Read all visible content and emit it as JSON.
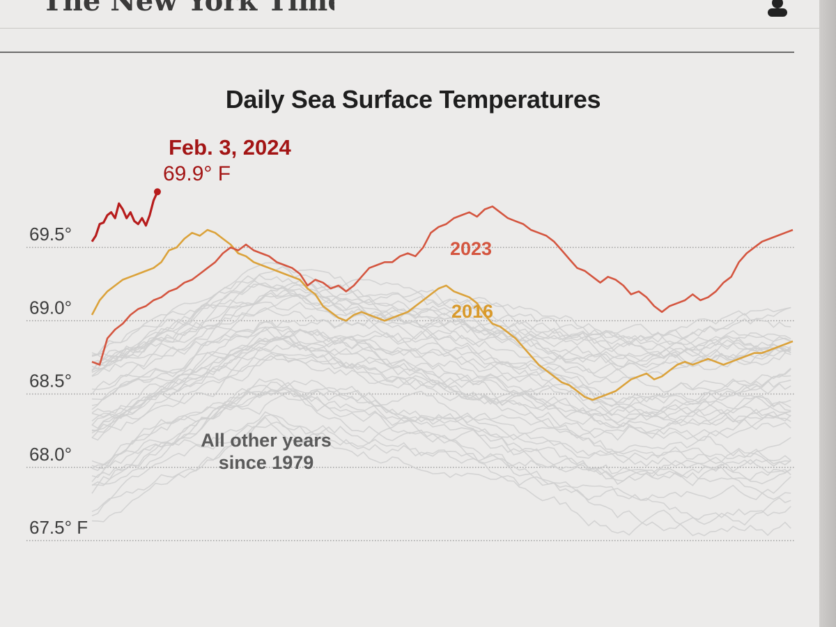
{
  "header": {
    "masthead": "The New York Times",
    "account_icon": "account-icon"
  },
  "chart_data": {
    "type": "line",
    "title": "Daily Sea Surface Temperatures",
    "unit": "° F",
    "ylim": [
      67.4,
      70.1
    ],
    "y_ticks": [
      {
        "value": 69.5,
        "label": "69.5°"
      },
      {
        "value": 69.0,
        "label": "69.0°"
      },
      {
        "value": 68.5,
        "label": "68.5°"
      },
      {
        "value": 68.0,
        "label": "68.0°"
      },
      {
        "value": 67.5,
        "label": "67.5° F"
      }
    ],
    "x_label": "",
    "grid": "horizontal dotted",
    "colors": {
      "current": "#b71c1c",
      "y2023": "#d4553f",
      "y2016": "#dba23a",
      "other": "#cfcfcf"
    },
    "series": [
      {
        "name": "2024",
        "color": "#b71c1c",
        "annotation_date": "Feb. 3, 2024",
        "annotation_value": "69.9° F",
        "x": [
          0,
          2,
          4,
          6,
          8,
          10,
          12,
          14,
          16,
          18,
          20,
          22,
          24,
          26,
          28,
          30,
          32,
          34
        ],
        "values": [
          69.54,
          69.58,
          69.66,
          69.67,
          69.72,
          69.74,
          69.7,
          69.8,
          69.76,
          69.7,
          69.74,
          69.68,
          69.66,
          69.7,
          69.65,
          69.72,
          69.82,
          69.88
        ]
      },
      {
        "name": "2023",
        "color": "#d4553f",
        "x": [
          0,
          4,
          8,
          12,
          16,
          20,
          24,
          28,
          32,
          36,
          40,
          44,
          48,
          52,
          56,
          60,
          64,
          68,
          72,
          76,
          80,
          84,
          88,
          92,
          96,
          100,
          104,
          108,
          112,
          116,
          120,
          124,
          128,
          132,
          136,
          140,
          144,
          148,
          152,
          156,
          160,
          164,
          168,
          172,
          176,
          180,
          184,
          188,
          192,
          196,
          200,
          204,
          208,
          212,
          216,
          220,
          224,
          228,
          232,
          236,
          240,
          244,
          248,
          252,
          256,
          260,
          264,
          268,
          272,
          276,
          280,
          284,
          288,
          292,
          296,
          300,
          304,
          308,
          312,
          316,
          320,
          324,
          328,
          332,
          336,
          340,
          344,
          348,
          352,
          356,
          360,
          364
        ],
        "values": [
          68.72,
          68.7,
          68.88,
          68.94,
          68.98,
          69.04,
          69.08,
          69.1,
          69.14,
          69.16,
          69.2,
          69.22,
          69.26,
          69.28,
          69.32,
          69.36,
          69.4,
          69.46,
          69.5,
          69.48,
          69.52,
          69.48,
          69.46,
          69.44,
          69.4,
          69.38,
          69.36,
          69.32,
          69.24,
          69.28,
          69.26,
          69.22,
          69.24,
          69.2,
          69.24,
          69.3,
          69.36,
          69.38,
          69.4,
          69.4,
          69.44,
          69.46,
          69.44,
          69.5,
          69.6,
          69.64,
          69.66,
          69.7,
          69.72,
          69.74,
          69.71,
          69.76,
          69.78,
          69.74,
          69.7,
          69.68,
          69.66,
          69.62,
          69.6,
          69.58,
          69.54,
          69.48,
          69.42,
          69.36,
          69.34,
          69.3,
          69.26,
          69.3,
          69.28,
          69.24,
          69.18,
          69.2,
          69.16,
          69.1,
          69.06,
          69.1,
          69.12,
          69.14,
          69.18,
          69.14,
          69.16,
          69.2,
          69.26,
          69.3,
          69.4,
          69.46,
          69.5,
          69.54,
          69.56,
          69.58,
          69.6,
          69.62
        ]
      },
      {
        "name": "2016",
        "color": "#dba23a",
        "x": [
          0,
          4,
          8,
          12,
          16,
          20,
          24,
          28,
          32,
          36,
          40,
          44,
          48,
          52,
          56,
          60,
          64,
          68,
          72,
          76,
          80,
          84,
          88,
          92,
          96,
          100,
          104,
          108,
          112,
          116,
          120,
          124,
          128,
          132,
          136,
          140,
          144,
          148,
          152,
          156,
          160,
          164,
          168,
          172,
          176,
          180,
          184,
          188,
          192,
          196,
          200,
          204,
          208,
          212,
          216,
          220,
          224,
          228,
          232,
          236,
          240,
          244,
          248,
          252,
          256,
          260,
          264,
          268,
          272,
          276,
          280,
          284,
          288,
          292,
          296,
          300,
          304,
          308,
          312,
          316,
          320,
          324,
          328,
          332,
          336,
          340,
          344,
          348,
          352,
          356,
          360,
          364
        ],
        "values": [
          69.04,
          69.14,
          69.2,
          69.24,
          69.28,
          69.3,
          69.32,
          69.34,
          69.36,
          69.4,
          69.48,
          69.5,
          69.56,
          69.6,
          69.58,
          69.62,
          69.6,
          69.56,
          69.52,
          69.46,
          69.44,
          69.4,
          69.38,
          69.36,
          69.34,
          69.32,
          69.3,
          69.28,
          69.22,
          69.18,
          69.1,
          69.06,
          69.02,
          69.0,
          69.04,
          69.06,
          69.04,
          69.02,
          69.0,
          69.02,
          69.04,
          69.06,
          69.1,
          69.14,
          69.18,
          69.22,
          69.24,
          69.2,
          69.18,
          69.16,
          69.12,
          69.04,
          68.98,
          68.96,
          68.92,
          68.88,
          68.82,
          68.76,
          68.7,
          68.66,
          68.62,
          68.58,
          68.56,
          68.52,
          68.48,
          68.46,
          68.48,
          68.5,
          68.52,
          68.56,
          68.6,
          68.62,
          68.64,
          68.6,
          68.62,
          68.66,
          68.7,
          68.72,
          68.7,
          68.72,
          68.74,
          68.72,
          68.7,
          68.72,
          68.74,
          68.76,
          68.78,
          68.78,
          68.8,
          68.82,
          68.84,
          68.86
        ]
      }
    ],
    "other_years": {
      "label_line1": "All other years",
      "label_line2": "since 1979",
      "count": 40,
      "range_low": [
        67.6,
        68.2,
        68.0,
        67.6,
        67.6
      ],
      "range_high": [
        68.8,
        69.3,
        69.1,
        68.9,
        69.0
      ]
    },
    "series_labels": {
      "y2023": "2023",
      "y2016": "2016"
    }
  }
}
